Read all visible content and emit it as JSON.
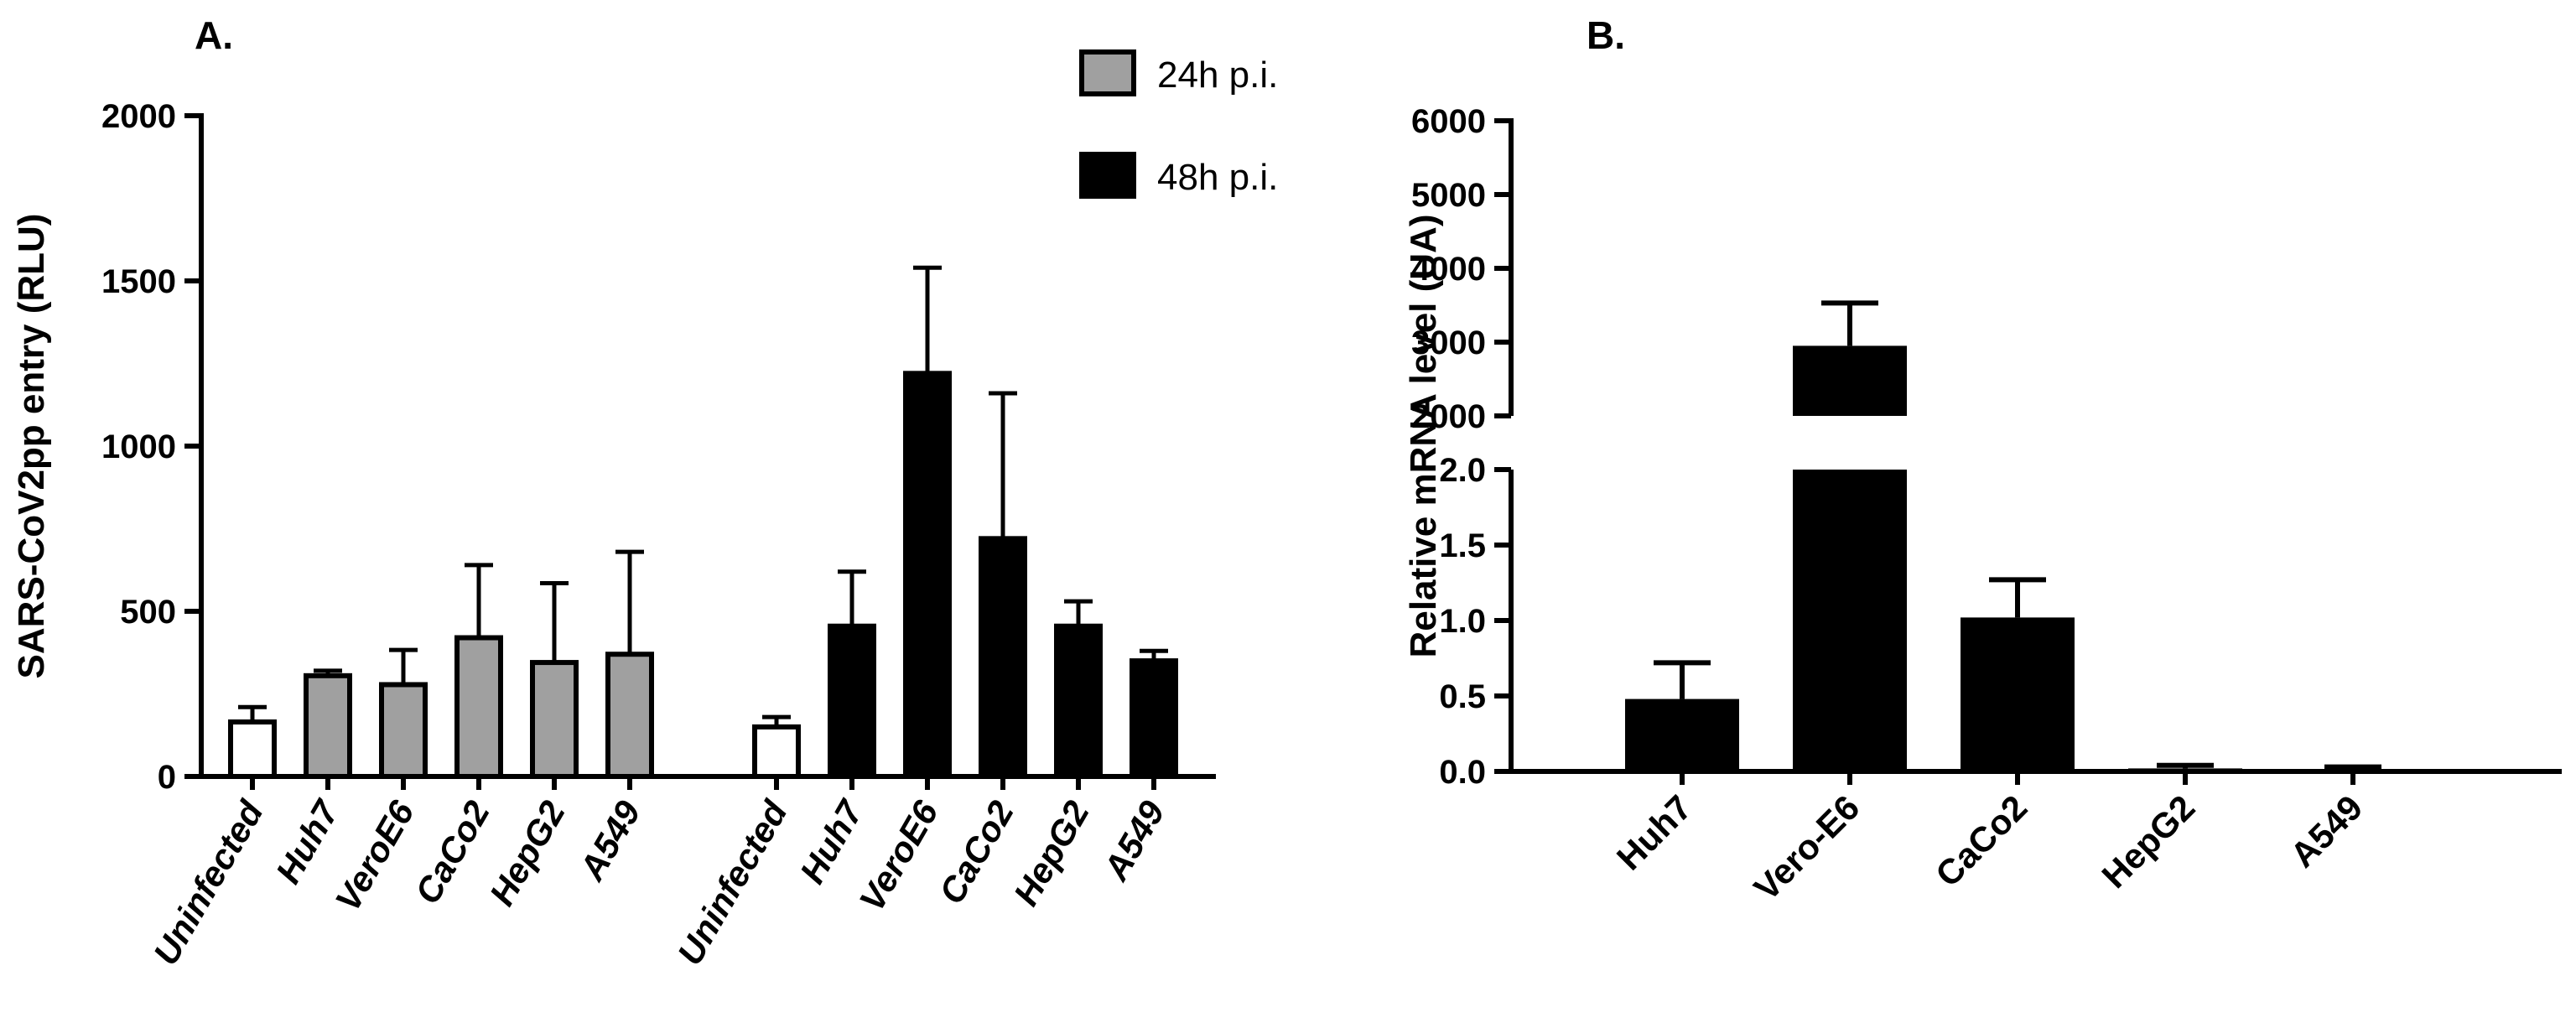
{
  "panel_a_label": "A.",
  "panel_b_label": "B.",
  "chart_data": [
    {
      "type": "bar",
      "panel": "A.",
      "ylabel": "SARS-CoV2pp entry (RLU)",
      "ylim": [
        0,
        2000
      ],
      "yticks": [
        0,
        500,
        1000,
        1500,
        2000
      ],
      "legend": {
        "placement": "top-center"
      },
      "groups": [
        {
          "name": "24h p.i.",
          "color": "#a0a0a0",
          "categories": [
            "Uninfected",
            "Huh7",
            "VeroE6",
            "CaCo2",
            "HepG2",
            "A549"
          ],
          "values": [
            165,
            305,
            278,
            420,
            345,
            370
          ],
          "errors": [
            45,
            15,
            105,
            220,
            240,
            310
          ]
        },
        {
          "name": "48h p.i.",
          "color": "#000000",
          "categories": [
            "Uninfected",
            "Huh7",
            "VeroE6",
            "CaCo2",
            "HepG2",
            "A549"
          ],
          "values": [
            150,
            455,
            1220,
            720,
            455,
            350
          ],
          "errors": [
            30,
            165,
            320,
            440,
            75,
            30
          ]
        }
      ],
      "uninfected_color": "#ffffff"
    },
    {
      "type": "bar",
      "panel": "B.",
      "ylabel": "Relative mRNA level  (UA)",
      "y_axis_break": true,
      "lower_segment": {
        "ylim": [
          0,
          2.0
        ],
        "yticks": [
          "0.0",
          "0.5",
          "1.0",
          "1.5",
          "2.0"
        ]
      },
      "upper_segment": {
        "ylim": [
          2000,
          6000
        ],
        "yticks": [
          "2000",
          "3000",
          "4000",
          "5000",
          "6000"
        ]
      },
      "categories": [
        "Huh7",
        "Vero-E6",
        "CaCo2",
        "HepG2",
        "A549"
      ],
      "values": [
        0.48,
        2950,
        1.02,
        0.02,
        0.01
      ],
      "errors": [
        0.24,
        580,
        0.25,
        0.02,
        0.02
      ],
      "color": "#000000"
    }
  ]
}
